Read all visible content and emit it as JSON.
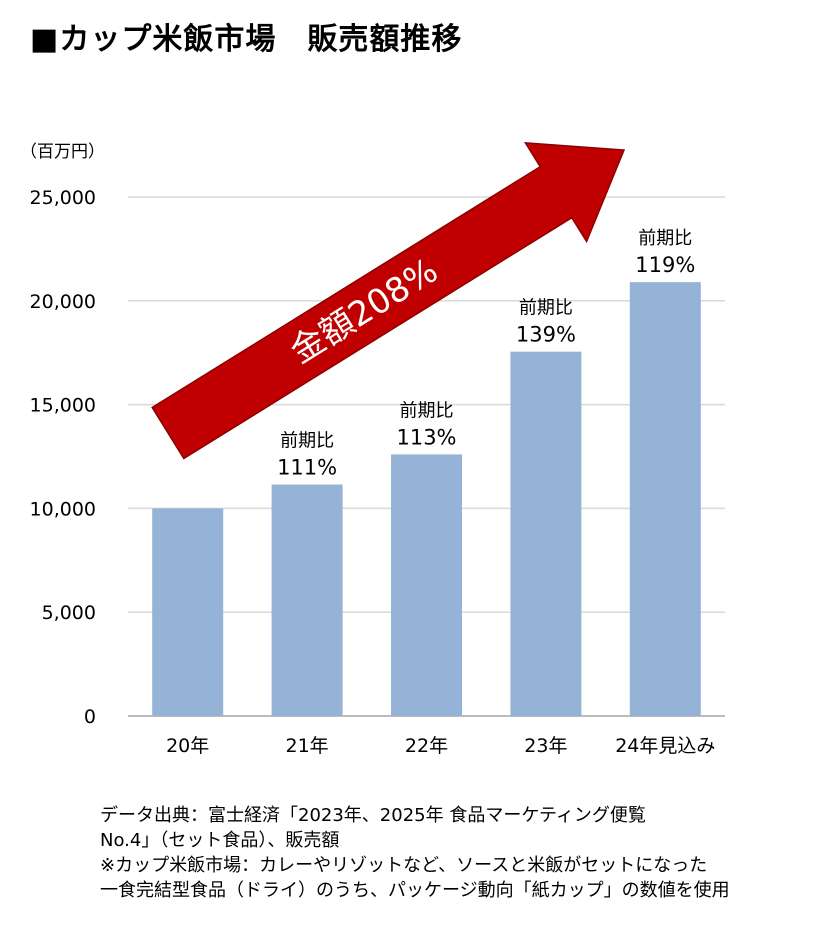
{
  "title": "■カップ米飯市場　販売額推移",
  "chart_data": {
    "type": "bar",
    "unit_label": "（百万円）",
    "categories": [
      "20年",
      "21年",
      "22年",
      "23年",
      "24年見込み"
    ],
    "values": [
      10000,
      11150,
      12600,
      17550,
      20900
    ],
    "ylim": [
      0,
      25000
    ],
    "yticks": [
      "0",
      "5,000",
      "10,000",
      "15,000",
      "20,000",
      "25,000"
    ],
    "ytick_values": [
      0,
      5000,
      10000,
      15000,
      20000,
      25000
    ],
    "grid": true,
    "bar_color": "#95b3d7",
    "annotations": [
      {
        "category": "21年",
        "line1": "前期比",
        "line2": "111%"
      },
      {
        "category": "22年",
        "line1": "前期比",
        "line2": "113%"
      },
      {
        "category": "23年",
        "line1": "前期比",
        "line2": "139%"
      },
      {
        "category": "24年見込み",
        "line1": "前期比",
        "line2": "119%"
      }
    ],
    "arrow_label": "金額208%",
    "arrow_color": "#c00000"
  },
  "source_note": [
    "データ出典：富士経済「2023年、2025年  食品マーケティング便覧",
    "No.4」（セット食品）、販売額",
    "※カップ米飯市場：カレーやリゾットなど、ソースと米飯がセットになった",
    "一食完結型食品（ドライ）のうち、パッケージ動向「紙カップ」の数値を使用"
  ]
}
